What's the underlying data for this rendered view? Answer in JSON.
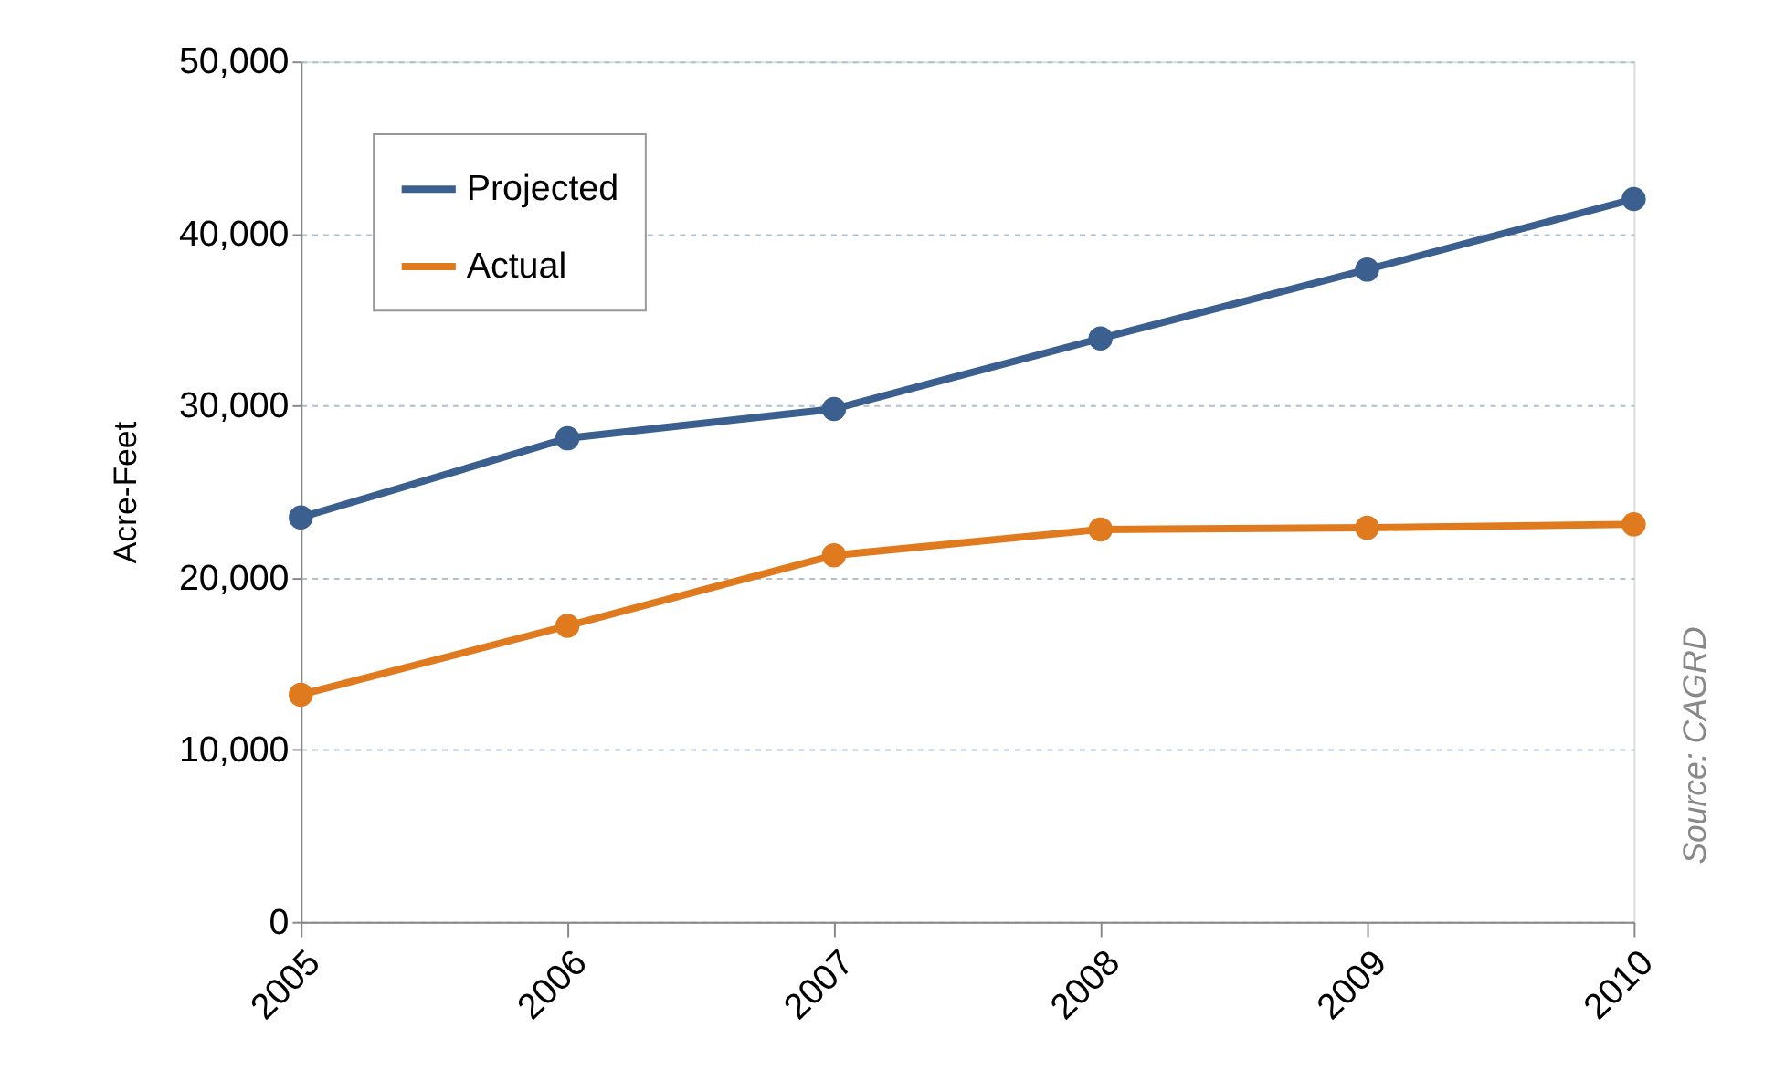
{
  "chart_data": {
    "type": "line",
    "ylabel": "Acre-Feet",
    "categories": [
      "2005",
      "2006",
      "2007",
      "2008",
      "2009",
      "2010"
    ],
    "series": [
      {
        "name": "Projected",
        "color": "#3b5f8e",
        "values": [
          23500,
          28100,
          29800,
          33900,
          37900,
          42000
        ]
      },
      {
        "name": "Actual",
        "color": "#e07a1f",
        "values": [
          13200,
          17200,
          21300,
          22800,
          22900,
          23100
        ]
      }
    ],
    "ylim": [
      0,
      50000
    ],
    "yticks": [
      0,
      {
        "value": 10000,
        "label": "10,000"
      },
      {
        "value": 20000,
        "label": "20,000"
      },
      {
        "value": 30000,
        "label": "30,000"
      },
      {
        "value": 40000,
        "label": "40,000"
      },
      {
        "value": 50000,
        "label": "50,000"
      }
    ],
    "grid": "y",
    "legend": "top left",
    "marker": "circle",
    "line_style": "solid",
    "annotations": [
      "Source: CAGRD"
    ]
  }
}
